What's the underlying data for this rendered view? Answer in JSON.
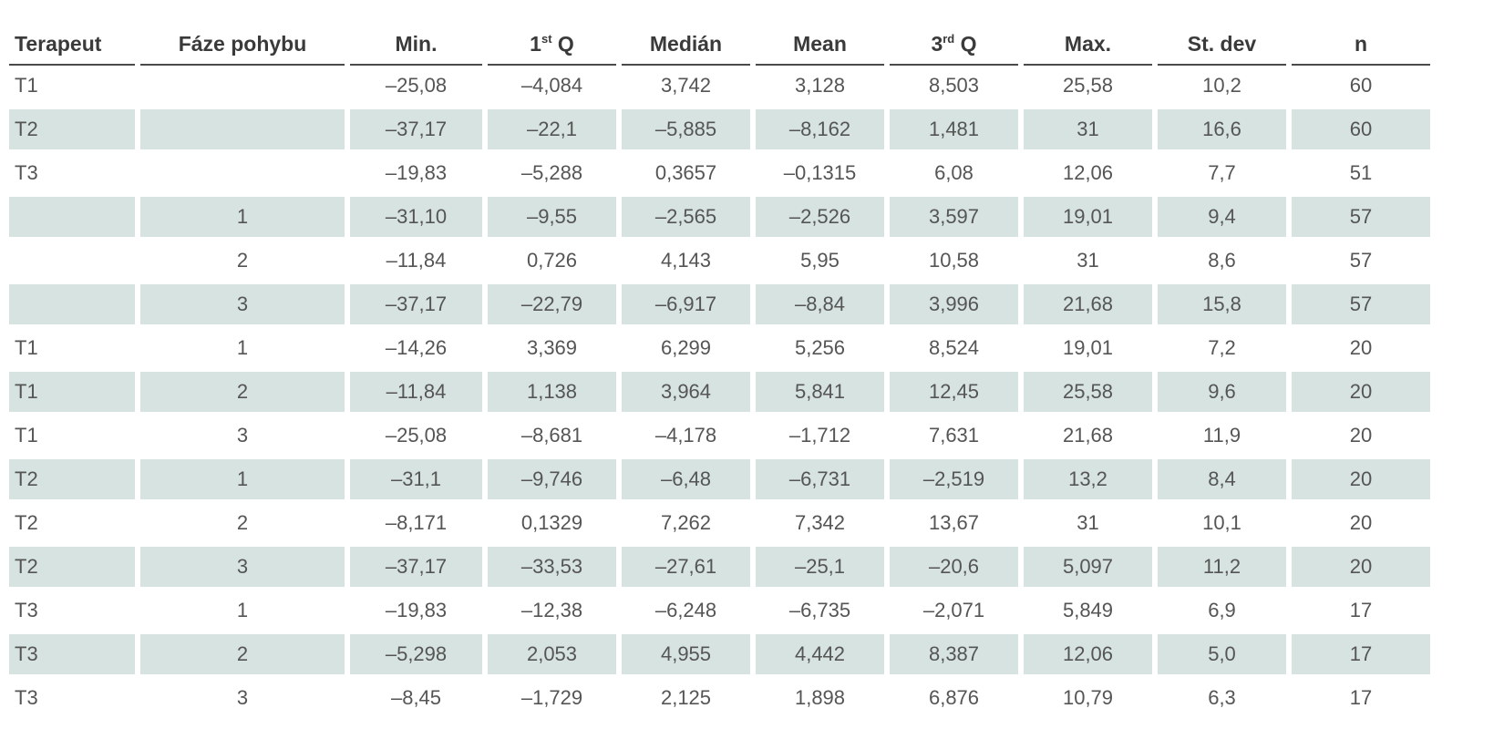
{
  "table": {
    "headers": {
      "terapeut": "Terapeut",
      "faze": "Fáze pohybu",
      "min": "Min.",
      "q1_main": "1",
      "q1_sup": "st",
      "q1_tail": " Q",
      "median": "Medián",
      "mean": "Mean",
      "q3_main": "3",
      "q3_sup": "rd",
      "q3_tail": " Q",
      "max": "Max.",
      "stdev": "St. dev",
      "n": "n"
    },
    "rows": [
      [
        "T1",
        "",
        "–25,08",
        "–4,084",
        "3,742",
        "3,128",
        "8,503",
        "25,58",
        "10,2",
        "60"
      ],
      [
        "T2",
        "",
        "–37,17",
        "–22,1",
        "–5,885",
        "–8,162",
        "1,481",
        "31",
        "16,6",
        "60"
      ],
      [
        "T3",
        "",
        "–19,83",
        "–5,288",
        "0,3657",
        "–0,1315",
        "6,08",
        "12,06",
        "7,7",
        "51"
      ],
      [
        "",
        "1",
        "–31,10",
        "–9,55",
        "–2,565",
        "–2,526",
        "3,597",
        "19,01",
        "9,4",
        "57"
      ],
      [
        "",
        "2",
        "–11,84",
        "0,726",
        "4,143",
        "5,95",
        "10,58",
        "31",
        "8,6",
        "57"
      ],
      [
        "",
        "3",
        "–37,17",
        "–22,79",
        "–6,917",
        "–8,84",
        "3,996",
        "21,68",
        "15,8",
        "57"
      ],
      [
        "T1",
        "1",
        "–14,26",
        "3,369",
        "6,299",
        "5,256",
        "8,524",
        "19,01",
        "7,2",
        "20"
      ],
      [
        "T1",
        "2",
        "–11,84",
        "1,138",
        "3,964",
        "5,841",
        "12,45",
        "25,58",
        "9,6",
        "20"
      ],
      [
        "T1",
        "3",
        "–25,08",
        "–8,681",
        "–4,178",
        "–1,712",
        "7,631",
        "21,68",
        "11,9",
        "20"
      ],
      [
        "T2",
        "1",
        "–31,1",
        "–9,746",
        "–6,48",
        "–6,731",
        "–2,519",
        "13,2",
        "8,4",
        "20"
      ],
      [
        "T2",
        "2",
        "–8,171",
        "0,1329",
        "7,262",
        "7,342",
        "13,67",
        "31",
        "10,1",
        "20"
      ],
      [
        "T2",
        "3",
        "–37,17",
        "–33,53",
        "–27,61",
        "–25,1",
        "–20,6",
        "5,097",
        "11,2",
        "20"
      ],
      [
        "T3",
        "1",
        "–19,83",
        "–12,38",
        "–6,248",
        "–6,735",
        "–2,071",
        "5,849",
        "6,9",
        "17"
      ],
      [
        "T3",
        "2",
        "–5,298",
        "2,053",
        "4,955",
        "4,442",
        "8,387",
        "12,06",
        "5,0",
        "17"
      ],
      [
        "T3",
        "3",
        "–8,45",
        "–1,729",
        "2,125",
        "1,898",
        "6,876",
        "10,79",
        "6,3",
        "17"
      ]
    ],
    "shade_color": "#d6e3e0",
    "text_color": "#555555"
  }
}
